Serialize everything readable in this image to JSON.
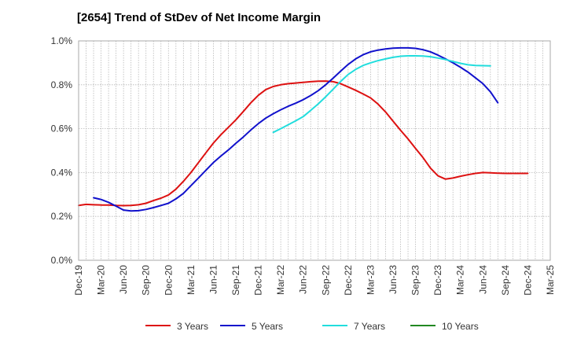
{
  "title": "[2654]  Trend of StDev of Net Income Margin",
  "chart_data": {
    "type": "line",
    "title": "[2654]  Trend of StDev of Net Income Margin",
    "xlabel": "",
    "ylabel": "",
    "categories": [
      "Dec-19",
      "Mar-20",
      "Jun-20",
      "Sep-20",
      "Dec-20",
      "Mar-21",
      "Jun-21",
      "Sep-21",
      "Dec-21",
      "Mar-22",
      "Jun-22",
      "Sep-22",
      "Dec-22",
      "Mar-23",
      "Jun-23",
      "Sep-23",
      "Dec-23",
      "Mar-24",
      "Jun-24",
      "Sep-24",
      "Dec-24",
      "Mar-25"
    ],
    "ylim": [
      0,
      1.0
    ],
    "yticks": [
      0.0,
      0.2,
      0.4,
      0.6,
      0.8,
      1.0
    ],
    "ytick_labels": [
      "0.0%",
      "0.2%",
      "0.4%",
      "0.6%",
      "0.8%",
      "1.0%"
    ],
    "grid": true,
    "legend_position": "bottom",
    "series": [
      {
        "name": "3 Years",
        "color": "#dd1111",
        "points": [
          [
            0,
            0.25
          ],
          [
            0.333,
            0.255
          ],
          [
            0.667,
            0.253
          ],
          [
            1,
            0.252
          ],
          [
            1.333,
            0.252
          ],
          [
            1.667,
            0.25
          ],
          [
            2,
            0.249
          ],
          [
            2.333,
            0.25
          ],
          [
            2.667,
            0.253
          ],
          [
            3,
            0.26
          ],
          [
            3.333,
            0.272
          ],
          [
            3.667,
            0.283
          ],
          [
            4,
            0.298
          ],
          [
            4.333,
            0.324
          ],
          [
            4.667,
            0.36
          ],
          [
            5,
            0.4
          ],
          [
            5.333,
            0.445
          ],
          [
            5.667,
            0.49
          ],
          [
            6,
            0.534
          ],
          [
            6.333,
            0.572
          ],
          [
            6.667,
            0.606
          ],
          [
            7,
            0.64
          ],
          [
            7.333,
            0.678
          ],
          [
            7.667,
            0.718
          ],
          [
            8,
            0.752
          ],
          [
            8.333,
            0.778
          ],
          [
            8.667,
            0.792
          ],
          [
            9,
            0.8
          ],
          [
            9.333,
            0.805
          ],
          [
            9.667,
            0.808
          ],
          [
            10,
            0.811
          ],
          [
            10.333,
            0.814
          ],
          [
            10.667,
            0.816
          ],
          [
            11,
            0.817
          ],
          [
            11.333,
            0.814
          ],
          [
            11.667,
            0.805
          ],
          [
            12,
            0.79
          ],
          [
            12.333,
            0.775
          ],
          [
            12.667,
            0.758
          ],
          [
            13,
            0.74
          ],
          [
            13.333,
            0.712
          ],
          [
            13.667,
            0.676
          ],
          [
            14,
            0.634
          ],
          [
            14.333,
            0.593
          ],
          [
            14.667,
            0.553
          ],
          [
            15,
            0.51
          ],
          [
            15.333,
            0.468
          ],
          [
            15.667,
            0.42
          ],
          [
            16,
            0.385
          ],
          [
            16.333,
            0.37
          ],
          [
            16.667,
            0.375
          ],
          [
            17,
            0.383
          ],
          [
            17.333,
            0.39
          ],
          [
            17.667,
            0.396
          ],
          [
            18,
            0.4
          ],
          [
            18.333,
            0.399
          ],
          [
            18.667,
            0.397
          ],
          [
            19,
            0.396
          ],
          [
            19.333,
            0.396
          ],
          [
            19.667,
            0.396
          ],
          [
            20,
            0.396
          ]
        ]
      },
      {
        "name": "5 Years",
        "color": "#1111cc",
        "points": [
          [
            0.667,
            0.285
          ],
          [
            1,
            0.277
          ],
          [
            1.333,
            0.264
          ],
          [
            1.667,
            0.247
          ],
          [
            2,
            0.229
          ],
          [
            2.333,
            0.225
          ],
          [
            2.667,
            0.226
          ],
          [
            3,
            0.232
          ],
          [
            3.333,
            0.24
          ],
          [
            3.667,
            0.25
          ],
          [
            4,
            0.26
          ],
          [
            4.333,
            0.28
          ],
          [
            4.667,
            0.305
          ],
          [
            5,
            0.34
          ],
          [
            5.333,
            0.375
          ],
          [
            5.667,
            0.41
          ],
          [
            6,
            0.445
          ],
          [
            6.333,
            0.475
          ],
          [
            6.667,
            0.503
          ],
          [
            7,
            0.533
          ],
          [
            7.333,
            0.562
          ],
          [
            7.667,
            0.594
          ],
          [
            8,
            0.623
          ],
          [
            8.333,
            0.648
          ],
          [
            8.667,
            0.668
          ],
          [
            9,
            0.686
          ],
          [
            9.333,
            0.702
          ],
          [
            9.667,
            0.716
          ],
          [
            10,
            0.732
          ],
          [
            10.333,
            0.751
          ],
          [
            10.667,
            0.773
          ],
          [
            11,
            0.8
          ],
          [
            11.333,
            0.83
          ],
          [
            11.667,
            0.862
          ],
          [
            12,
            0.893
          ],
          [
            12.333,
            0.918
          ],
          [
            12.667,
            0.937
          ],
          [
            13,
            0.95
          ],
          [
            13.333,
            0.958
          ],
          [
            13.667,
            0.963
          ],
          [
            14,
            0.967
          ],
          [
            14.333,
            0.968
          ],
          [
            14.667,
            0.968
          ],
          [
            15,
            0.966
          ],
          [
            15.333,
            0.96
          ],
          [
            15.667,
            0.95
          ],
          [
            16,
            0.935
          ],
          [
            16.333,
            0.918
          ],
          [
            16.667,
            0.9
          ],
          [
            17,
            0.88
          ],
          [
            17.333,
            0.858
          ],
          [
            17.667,
            0.832
          ],
          [
            18,
            0.805
          ],
          [
            18.333,
            0.768
          ],
          [
            18.667,
            0.718
          ]
        ]
      },
      {
        "name": "7 Years",
        "color": "#22dddd",
        "points": [
          [
            8.667,
            0.583
          ],
          [
            9,
            0.6
          ],
          [
            9.333,
            0.618
          ],
          [
            9.667,
            0.636
          ],
          [
            10,
            0.655
          ],
          [
            10.333,
            0.683
          ],
          [
            10.667,
            0.713
          ],
          [
            11,
            0.745
          ],
          [
            11.333,
            0.78
          ],
          [
            11.667,
            0.815
          ],
          [
            12,
            0.847
          ],
          [
            12.333,
            0.87
          ],
          [
            12.667,
            0.888
          ],
          [
            13,
            0.9
          ],
          [
            13.333,
            0.91
          ],
          [
            13.667,
            0.918
          ],
          [
            14,
            0.925
          ],
          [
            14.333,
            0.93
          ],
          [
            14.667,
            0.932
          ],
          [
            15,
            0.932
          ],
          [
            15.333,
            0.931
          ],
          [
            15.667,
            0.928
          ],
          [
            16,
            0.922
          ],
          [
            16.333,
            0.915
          ],
          [
            16.667,
            0.906
          ],
          [
            17,
            0.898
          ],
          [
            17.333,
            0.891
          ],
          [
            17.667,
            0.888
          ],
          [
            18,
            0.887
          ],
          [
            18.333,
            0.886
          ]
        ]
      },
      {
        "name": "10 Years",
        "color": "#228822",
        "points": []
      }
    ]
  }
}
